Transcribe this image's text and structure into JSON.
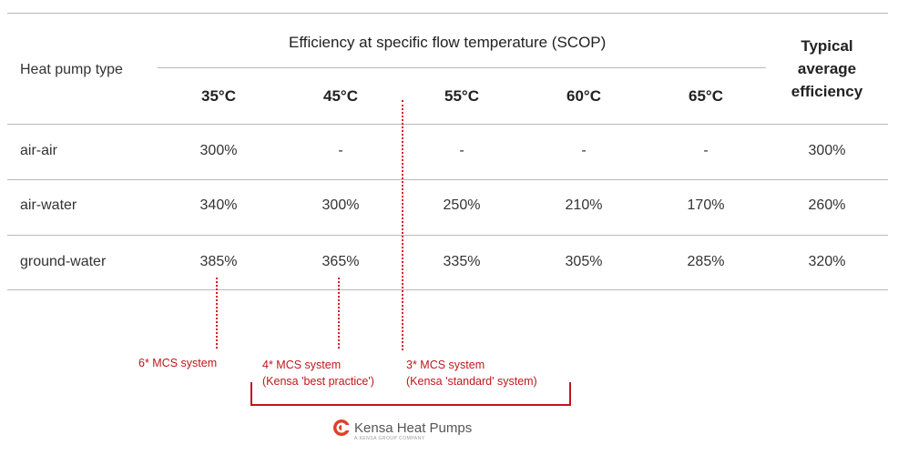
{
  "table": {
    "header_main": "Efficiency at specific flow temperature (SCOP)",
    "header_type": "Heat pump type",
    "header_typical": "Typical average efficiency",
    "temperatures": [
      "35°C",
      "45°C",
      "55°C",
      "60°C",
      "65°C"
    ],
    "rows": [
      {
        "type": "air-air",
        "values": [
          "300%",
          "-",
          "-",
          "-",
          "-"
        ],
        "typical": "300%"
      },
      {
        "type": "air-water",
        "values": [
          "340%",
          "300%",
          "250%",
          "210%",
          "170%"
        ],
        "typical": "260%"
      },
      {
        "type": "ground-water",
        "values": [
          "385%",
          "365%",
          "335%",
          "305%",
          "285%"
        ],
        "typical": "320%"
      }
    ]
  },
  "annotations": {
    "six_star": "6* MCS system",
    "four_star_line1": "4* MCS system",
    "four_star_line2": "(Kensa 'best practice')",
    "three_star_line1": "3* MCS system",
    "three_star_line2": "(Kensa 'standard' system)"
  },
  "logo": {
    "text": "Kensa Heat Pumps",
    "subtext": "A KENSA GROUP COMPANY",
    "color": "#e0402a"
  },
  "colors": {
    "annotation": "#c0161a",
    "rule": "#b9b9b9"
  }
}
